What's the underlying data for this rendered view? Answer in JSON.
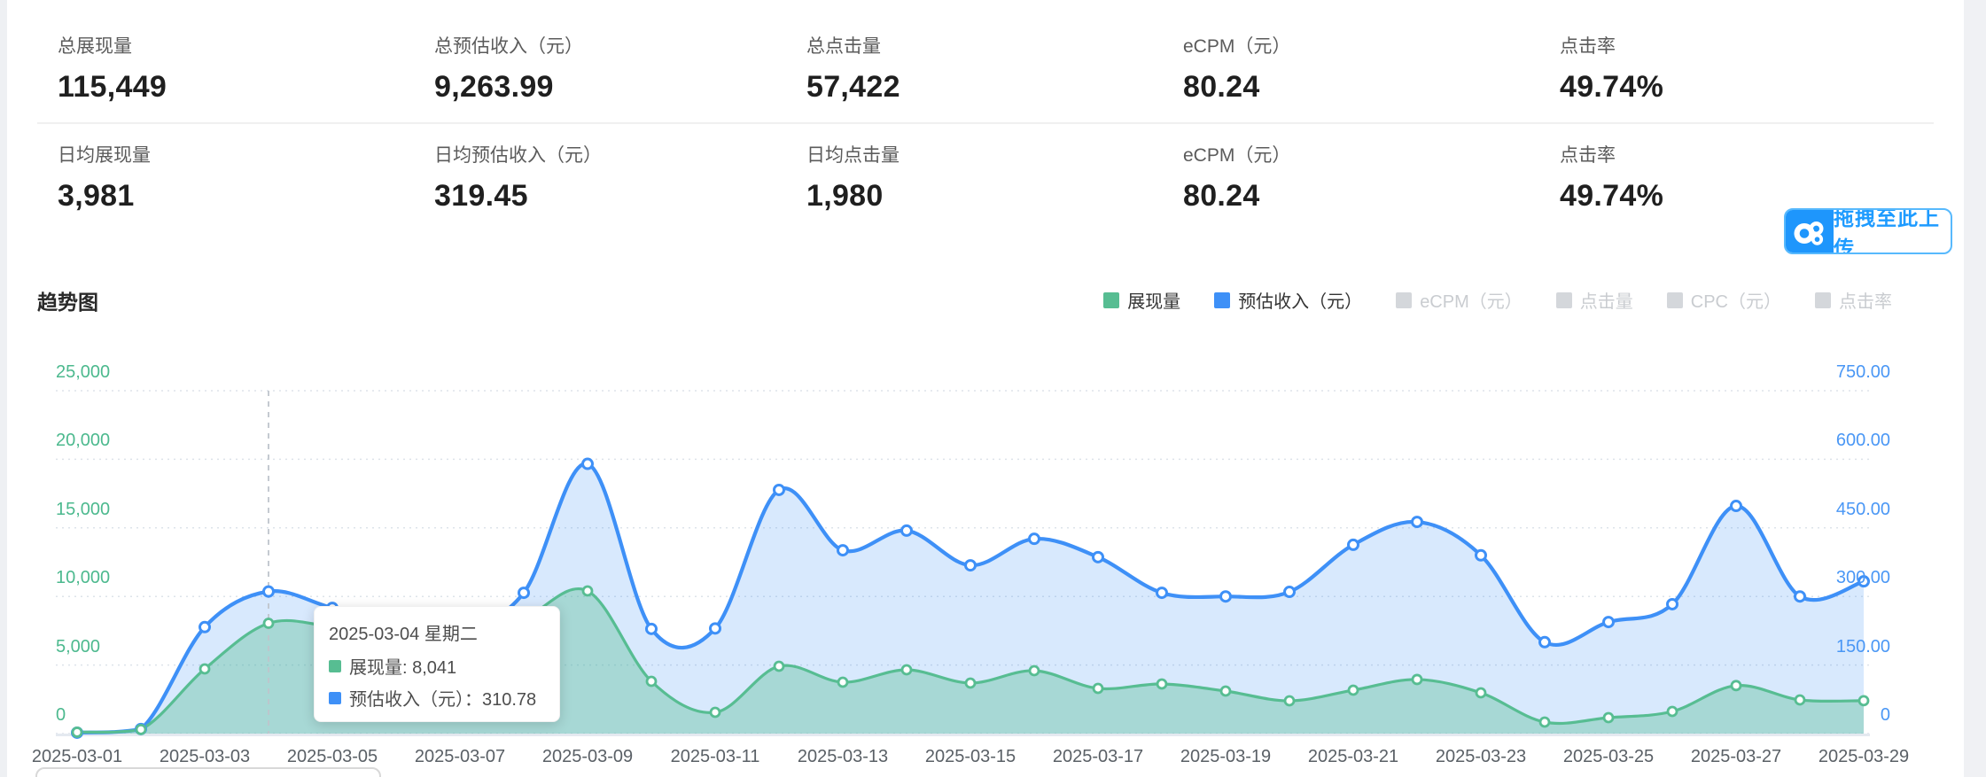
{
  "stats": {
    "row1": [
      {
        "label": "总展现量",
        "value": "115,449"
      },
      {
        "label": "总预估收入（元）",
        "value": "9,263.99"
      },
      {
        "label": "总点击量",
        "value": "57,422"
      },
      {
        "label": "eCPM（元）",
        "value": "80.24"
      },
      {
        "label": "点击率",
        "value": "49.74%"
      }
    ],
    "row2": [
      {
        "label": "日均展现量",
        "value": "3,981"
      },
      {
        "label": "日均预估收入（元）",
        "value": "319.45"
      },
      {
        "label": "日均点击量",
        "value": "1,980"
      },
      {
        "label": "eCPM（元）",
        "value": "80.24"
      },
      {
        "label": "点击率",
        "value": "49.74%"
      }
    ]
  },
  "upload_button": {
    "label": "拖拽至此上传",
    "icon": "baidu-netdisk-icon"
  },
  "chart": {
    "title": "趋势图",
    "legend": [
      {
        "label": "展现量",
        "color": "#57BD92",
        "active": true
      },
      {
        "label": "预估收入（元）",
        "color": "#3E90F7",
        "active": true
      },
      {
        "label": "eCPM（元）",
        "color": "#D4D7DB",
        "active": false
      },
      {
        "label": "点击量",
        "color": "#D4D7DB",
        "active": false
      },
      {
        "label": "CPC（元）",
        "color": "#D4D7DB",
        "active": false
      },
      {
        "label": "点击率",
        "color": "#D4D7DB",
        "active": false
      }
    ],
    "tooltip": {
      "title": "2025-03-04 星期二",
      "rows": [
        {
          "swatch": "#57BD92",
          "text": "展现量: 8,041"
        },
        {
          "swatch": "#3E90F7",
          "text": "预估收入（元）：310.78"
        }
      ]
    },
    "colors": {
      "left_axis_label": "#4CB98E",
      "right_axis_label": "#4A97F5",
      "grid_line": "#dde3ea",
      "axis_line": "#e4e9f0",
      "pointer_line": "#bfc5cc",
      "inactive_legend_text": "#c9ccd0",
      "active_legend_text": "#333333"
    }
  },
  "chart_data": {
    "type": "line",
    "smooth": true,
    "grid": true,
    "legend_position": "top-right",
    "x": [
      "2025-03-01",
      "2025-03-02",
      "2025-03-03",
      "2025-03-04",
      "2025-03-05",
      "2025-03-06",
      "2025-03-07",
      "2025-03-08",
      "2025-03-09",
      "2025-03-10",
      "2025-03-11",
      "2025-03-12",
      "2025-03-13",
      "2025-03-14",
      "2025-03-15",
      "2025-03-16",
      "2025-03-17",
      "2025-03-18",
      "2025-03-19",
      "2025-03-20",
      "2025-03-21",
      "2025-03-22",
      "2025-03-23",
      "2025-03-24",
      "2025-03-25",
      "2025-03-26",
      "2025-03-27",
      "2025-03-28",
      "2025-03-29"
    ],
    "x_tick_labels": [
      "2025-03-01",
      "2025-03-03",
      "2025-03-05",
      "2025-03-07",
      "2025-03-09",
      "2025-03-11",
      "2025-03-13",
      "2025-03-15",
      "2025-03-17",
      "2025-03-19",
      "2025-03-21",
      "2025-03-23",
      "2025-03-25",
      "2025-03-27",
      "2025-03-29"
    ],
    "pointer_index": 3,
    "y_left": {
      "min": 0,
      "max": 25000,
      "ticks": [
        "0",
        "5,000",
        "10,000",
        "15,000",
        "20,000",
        "25,000"
      ]
    },
    "y_right": {
      "min": 0,
      "max": 750,
      "ticks": [
        "0",
        "150.00",
        "300.00",
        "450.00",
        "600.00",
        "750.00"
      ]
    },
    "series": [
      {
        "name": "展现量",
        "axis": "left",
        "color": "#57BD92",
        "area_opacity": 0.38,
        "values": [
          100,
          300,
          4716,
          8041,
          7800,
          7300,
          7000,
          8400,
          10400,
          3810,
          1550,
          4910,
          3747,
          4651,
          3682,
          4587,
          3295,
          3618,
          3100,
          2390,
          3165,
          3943,
          2971,
          840,
          1163,
          1615,
          3500,
          2455,
          2400
        ]
      },
      {
        "name": "预估收入（元）",
        "axis": "right",
        "color": "#3E90F7",
        "area_opacity": 0.2,
        "values": [
          2,
          10,
          233,
          310.78,
          275,
          247,
          229.21,
          308,
          590,
          229,
          230,
          533,
          401,
          444,
          368,
          426,
          386,
          308,
          300,
          310,
          413,
          463,
          390,
          200,
          244,
          283,
          498,
          300,
          333
        ]
      }
    ]
  }
}
